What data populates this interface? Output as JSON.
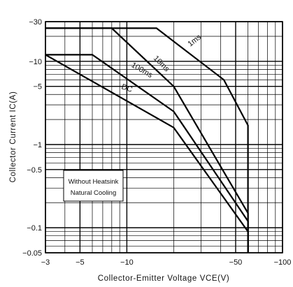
{
  "chart_data": {
    "type": "line",
    "title": "",
    "xlabel": "Collector-Emitter Voltage VCE(V)",
    "ylabel": "Collector Current IC(A)",
    "x_scale": "log",
    "y_scale": "log",
    "xlim": [
      -3,
      -100
    ],
    "ylim": [
      -0.05,
      -30
    ],
    "grid": true,
    "x_ticks": [
      {
        "value": -3,
        "label": "−3"
      },
      {
        "value": -5,
        "label": "−5"
      },
      {
        "value": -10,
        "label": "−10"
      },
      {
        "value": -50,
        "label": "−50"
      },
      {
        "value": -100,
        "label": "−100"
      }
    ],
    "y_ticks": [
      {
        "value": -30,
        "label": "−30"
      },
      {
        "value": -10,
        "label": "−10"
      },
      {
        "value": -5,
        "label": "−5"
      },
      {
        "value": -1,
        "label": "−1"
      },
      {
        "value": -0.5,
        "label": "−0.5"
      },
      {
        "value": -0.1,
        "label": "−0.1"
      },
      {
        "value": -0.05,
        "label": "−0.05"
      }
    ],
    "series": [
      {
        "name": "1ms",
        "x": [
          -3,
          -15.5,
          -42,
          -60,
          -60
        ],
        "y": [
          -25,
          -25,
          -6,
          -1.7,
          -0.05
        ]
      },
      {
        "name": "10ms",
        "x": [
          -3,
          -8,
          -20,
          -60,
          -60
        ],
        "y": [
          -25,
          -25,
          -5,
          -0.15,
          -0.05
        ]
      },
      {
        "name": "100ms",
        "x": [
          -3,
          -6,
          -20,
          -60,
          -60
        ],
        "y": [
          -12,
          -12,
          -2.5,
          -0.12,
          -0.05
        ]
      },
      {
        "name": "DC",
        "x": [
          -3,
          -20,
          -60,
          -60
        ],
        "y": [
          -12,
          -1.6,
          -0.09,
          -0.05
        ]
      }
    ],
    "annotations": [
      {
        "text": "Without Heatsink"
      },
      {
        "text": "Natural Cooling"
      }
    ]
  }
}
